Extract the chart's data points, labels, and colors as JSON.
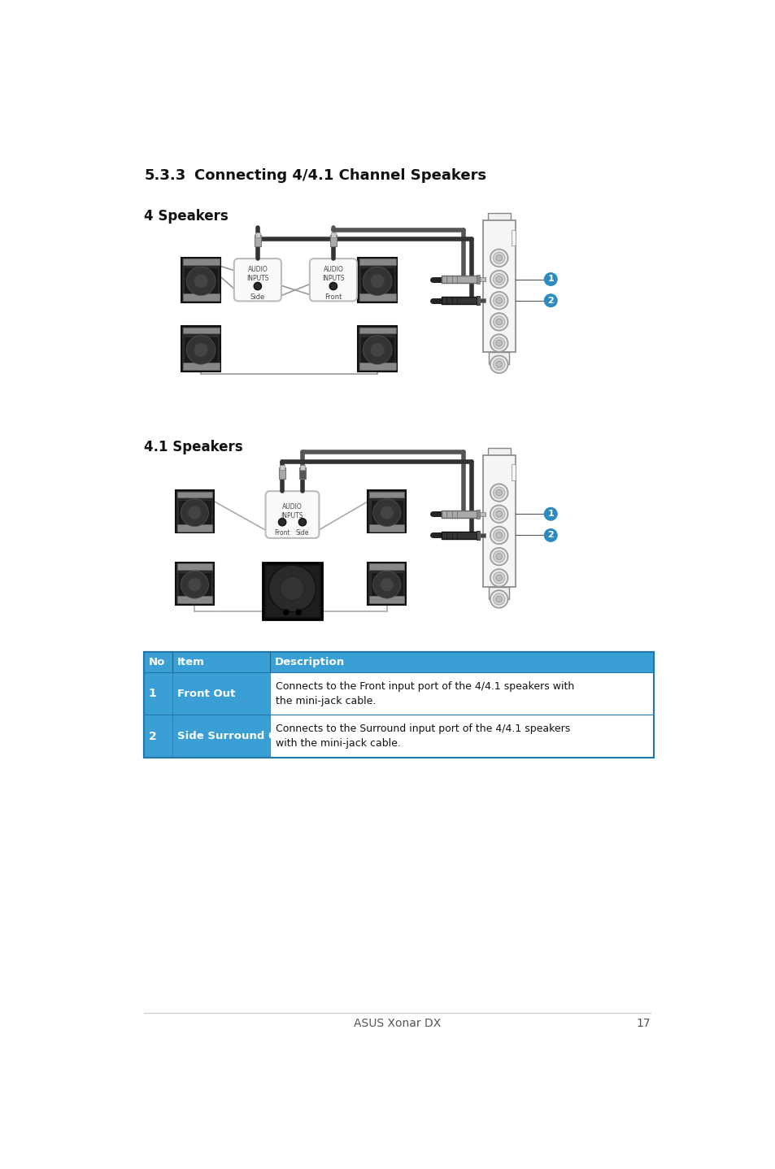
{
  "title_num": "5.3.3",
  "title_text": "Connecting 4/4.1 Channel Speakers",
  "section1_label": "4 Speakers",
  "section2_label": "4.1 Speakers",
  "table_header": [
    "No",
    "Item",
    "Description"
  ],
  "table_header_color": "#3a9fd4",
  "table_rows": [
    [
      "1",
      "Front Out",
      "Connects to the Front input port of the 4/4.1 speakers with\nthe mini-jack cable."
    ],
    [
      "2",
      "Side Surround Out",
      "Connects to the Surround input port of the 4/4.1 speakers\nwith the mini-jack cable."
    ]
  ],
  "footer_text": "ASUS Xonar DX",
  "footer_page": "17",
  "bg": "#ffffff",
  "dark": "#111111",
  "mid": "#555555",
  "light": "#aaaaaa",
  "badge_blue": "#2e8bc0",
  "card_fill": "#f2f2f2",
  "card_edge": "#999999",
  "speaker_dark": "#3a3a3a",
  "speaker_mid": "#666666",
  "speaker_light": "#999999",
  "cable_dark": "#444444",
  "cable_light": "#aaaaaa",
  "sub_fill": "#1a1a1a"
}
